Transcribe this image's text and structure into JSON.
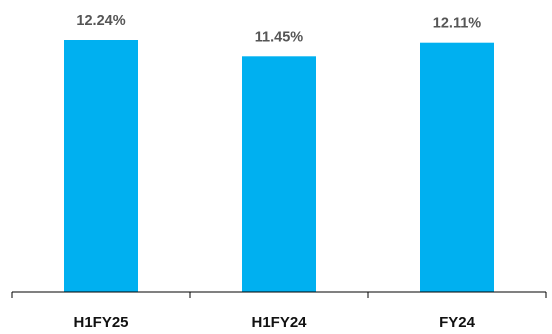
{
  "chart_data": {
    "type": "bar",
    "categories": [
      "H1FY25",
      "H1FY24",
      "FY24"
    ],
    "values": [
      12.24,
      11.45,
      12.11
    ],
    "data_labels": [
      "12.24%",
      "11.45%",
      "12.11%"
    ],
    "value_unit": "%",
    "title": "",
    "xlabel": "",
    "ylabel": "",
    "grid": false,
    "y_axis_visible": false,
    "colors": {
      "bar": "#00B0F0",
      "axis": "#000000",
      "data_label": "#555555",
      "tick_label": "#111111"
    }
  }
}
